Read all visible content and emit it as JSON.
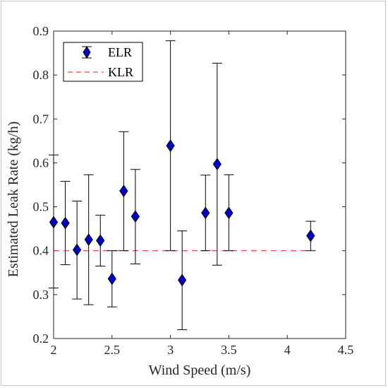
{
  "chart_data": {
    "type": "scatter",
    "title": "",
    "xlabel": "Wind Speed (m/s)",
    "ylabel": "Estimated Leak Rate (kg/h)",
    "xlim": [
      2,
      4.5
    ],
    "ylim": [
      0.2,
      0.9
    ],
    "x_ticks": [
      "2",
      "2.5",
      "3",
      "3.5",
      "4",
      "4.5"
    ],
    "y_ticks": [
      "0.2",
      "0.3",
      "0.4",
      "0.5",
      "0.6",
      "0.7",
      "0.8",
      "0.9"
    ],
    "grid": false,
    "legend_position": "top-left",
    "series": [
      {
        "name": "ELR",
        "kind": "errorbar",
        "color": "#0000cc",
        "marker": "diamond",
        "points": [
          {
            "x": 2.0,
            "y": 0.465,
            "low": 0.315,
            "high": 0.618
          },
          {
            "x": 2.1,
            "y": 0.463,
            "low": 0.368,
            "high": 0.558
          },
          {
            "x": 2.2,
            "y": 0.402,
            "low": 0.29,
            "high": 0.513
          },
          {
            "x": 2.3,
            "y": 0.425,
            "low": 0.277,
            "high": 0.573
          },
          {
            "x": 2.4,
            "y": 0.423,
            "low": 0.365,
            "high": 0.481
          },
          {
            "x": 2.5,
            "y": 0.336,
            "low": 0.272,
            "high": 0.4
          },
          {
            "x": 2.6,
            "y": 0.536,
            "low": 0.4,
            "high": 0.671
          },
          {
            "x": 2.7,
            "y": 0.478,
            "low": 0.37,
            "high": 0.585
          },
          {
            "x": 3.0,
            "y": 0.639,
            "low": 0.4,
            "high": 0.878
          },
          {
            "x": 3.1,
            "y": 0.333,
            "low": 0.22,
            "high": 0.445
          },
          {
            "x": 3.3,
            "y": 0.486,
            "low": 0.4,
            "high": 0.572
          },
          {
            "x": 3.4,
            "y": 0.597,
            "low": 0.367,
            "high": 0.827
          },
          {
            "x": 3.5,
            "y": 0.486,
            "low": 0.4,
            "high": 0.573
          },
          {
            "x": 4.2,
            "y": 0.434,
            "low": 0.4,
            "high": 0.467
          }
        ]
      },
      {
        "name": "KLR",
        "kind": "line",
        "color": "#ff4040",
        "dash": "dashed",
        "x": [
          2.0,
          4.2
        ],
        "y": [
          0.4,
          0.4
        ]
      }
    ]
  }
}
